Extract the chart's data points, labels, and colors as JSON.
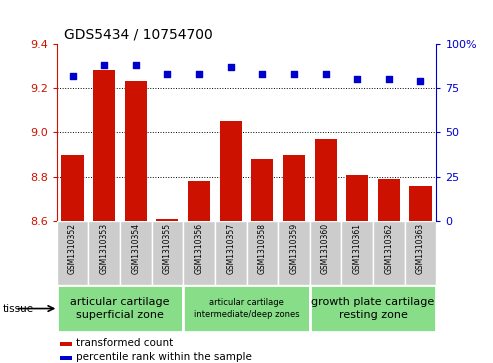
{
  "title": "GDS5434 / 10754700",
  "samples": [
    "GSM1310352",
    "GSM1310353",
    "GSM1310354",
    "GSM1310355",
    "GSM1310356",
    "GSM1310357",
    "GSM1310358",
    "GSM1310359",
    "GSM1310360",
    "GSM1310361",
    "GSM1310362",
    "GSM1310363"
  ],
  "bar_values": [
    8.9,
    9.28,
    9.23,
    8.61,
    8.78,
    9.05,
    8.88,
    8.9,
    8.97,
    8.81,
    8.79,
    8.76
  ],
  "dot_values": [
    82,
    88,
    88,
    83,
    83,
    87,
    83,
    83,
    83,
    80,
    80,
    79
  ],
  "ylim_left": [
    8.6,
    9.4
  ],
  "ylim_right": [
    0,
    100
  ],
  "yticks_left": [
    8.6,
    8.8,
    9.0,
    9.2,
    9.4
  ],
  "yticks_right": [
    0,
    25,
    50,
    75,
    100
  ],
  "bar_color": "#cc1100",
  "dot_color": "#0000cc",
  "axis_left_color": "#cc1100",
  "axis_right_color": "#0000cc",
  "tissue_groups": [
    {
      "label": "articular cartilage\nsuperficial zone",
      "start": 0,
      "end": 3,
      "color": "#88dd88",
      "fontsize": 8
    },
    {
      "label": "articular cartilage\nintermediate/deep zones",
      "start": 4,
      "end": 7,
      "color": "#88dd88",
      "fontsize": 6
    },
    {
      "label": "growth plate cartilage\nresting zone",
      "start": 8,
      "end": 11,
      "color": "#88dd88",
      "fontsize": 8
    }
  ],
  "tissue_label": "tissue",
  "legend_bar_label": "transformed count",
  "legend_dot_label": "percentile rank within the sample",
  "xticklabels_bg": "#cccccc",
  "grid_ticks": [
    8.8,
    9.0,
    9.2
  ]
}
